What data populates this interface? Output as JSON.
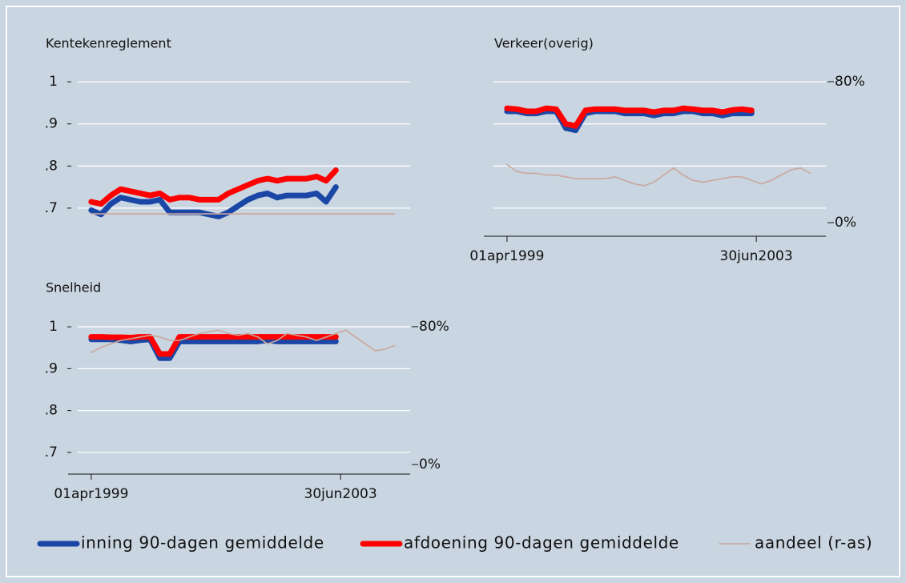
{
  "legend": {
    "position": "bottom",
    "entries": [
      {
        "name": "inning 90-dagen gemiddelde",
        "color": "#1a47a6"
      },
      {
        "name": "afdoening 90-dagen gemiddelde",
        "color": "#ff0000"
      },
      {
        "name": "aandeel (r-as)",
        "color": "#c9a79c"
      }
    ]
  },
  "chart_data": [
    {
      "type": "line",
      "title": "Kentekenreglement",
      "x": [
        "1999-04-01",
        "1999-06-01",
        "1999-08-01",
        "1999-10-01",
        "1999-12-01",
        "2000-02-01",
        "2000-04-01",
        "2000-06-01",
        "2000-08-01",
        "2000-10-01",
        "2000-12-01",
        "2001-02-01",
        "2001-04-01",
        "2001-06-01",
        "2001-08-01",
        "2001-10-01",
        "2001-12-01",
        "2002-02-01",
        "2002-04-01",
        "2002-06-01",
        "2002-08-01",
        "2002-10-01",
        "2002-12-01",
        "2003-02-01",
        "2003-04-01",
        "2003-06-01",
        "2003-08-01",
        "2003-10-01",
        "2003-12-01",
        "2004-02-01",
        "2004-04-01",
        "2004-06-01"
      ],
      "series": [
        {
          "values": [
            0.695,
            0.685,
            0.71,
            0.725,
            0.72,
            0.715,
            0.715,
            0.72,
            0.69,
            0.69,
            0.69,
            0.69,
            0.685,
            0.68,
            0.69,
            0.705,
            0.72,
            0.73,
            0.735,
            0.725,
            0.73,
            0.73,
            0.73,
            0.735,
            0.715,
            0.75,
            null,
            null,
            null,
            null,
            null,
            null
          ]
        },
        {
          "values": [
            0.715,
            0.71,
            0.73,
            0.745,
            0.74,
            0.735,
            0.73,
            0.735,
            0.72,
            0.725,
            0.725,
            0.72,
            0.72,
            0.72,
            0.735,
            0.745,
            0.755,
            0.765,
            0.77,
            0.765,
            0.77,
            0.77,
            0.77,
            0.775,
            0.765,
            0.79,
            null,
            null,
            null,
            null,
            null,
            null
          ]
        },
        {
          "axis": "y2",
          "values": [
            5,
            5,
            5,
            5,
            5,
            5,
            5,
            5,
            5,
            5,
            5,
            5,
            5,
            5,
            5,
            5,
            5,
            5,
            5,
            5,
            5,
            5,
            5,
            5,
            5,
            5,
            5,
            5,
            5,
            5,
            5,
            5
          ]
        }
      ],
      "xlim": [
        "1998-11-08",
        "2004-09-05"
      ],
      "ylim": [
        0.637,
        1.025
      ],
      "yticks": [
        1,
        {
          "value": 0.9,
          "label": ".9"
        },
        {
          "value": 0.8,
          "label": ".8"
        },
        {
          "value": 0.7,
          "label": ".7"
        }
      ],
      "ytick_labels": true,
      "y2lim": [
        -6.8,
        85.9
      ],
      "grid": true
    },
    {
      "type": "line",
      "title": "Verkeer(overig)",
      "x": [
        "1999-04-01",
        "1999-06-01",
        "1999-08-01",
        "1999-10-01",
        "1999-12-01",
        "2000-02-01",
        "2000-04-01",
        "2000-06-01",
        "2000-08-01",
        "2000-10-01",
        "2000-12-01",
        "2001-02-01",
        "2001-04-01",
        "2001-06-01",
        "2001-08-01",
        "2001-10-01",
        "2001-12-01",
        "2002-02-01",
        "2002-04-01",
        "2002-06-01",
        "2002-08-01",
        "2002-10-01",
        "2002-12-01",
        "2003-02-01",
        "2003-04-01",
        "2003-06-01",
        "2003-08-01",
        "2003-10-01",
        "2003-12-01",
        "2004-02-01",
        "2004-04-01",
        "2004-06-01"
      ],
      "series": [
        {
          "values": [
            0.93,
            0.93,
            0.925,
            0.925,
            0.93,
            0.93,
            0.89,
            0.885,
            0.925,
            0.93,
            0.93,
            0.93,
            0.925,
            0.925,
            0.925,
            0.92,
            0.925,
            0.925,
            0.93,
            0.93,
            0.925,
            0.925,
            0.92,
            0.925,
            0.925,
            0.925,
            null,
            null,
            null,
            null,
            null,
            null
          ]
        },
        {
          "values": [
            0.937,
            0.935,
            0.93,
            0.93,
            0.937,
            0.935,
            0.9,
            0.895,
            0.932,
            0.935,
            0.935,
            0.935,
            0.932,
            0.932,
            0.932,
            0.928,
            0.932,
            0.932,
            0.937,
            0.935,
            0.932,
            0.932,
            0.928,
            0.933,
            0.935,
            0.932,
            null,
            null,
            null,
            null,
            null,
            null
          ]
        },
        {
          "axis": "y2",
          "values": [
            33,
            29,
            28,
            28,
            27,
            27,
            26,
            25,
            25,
            25,
            25,
            26,
            24,
            22,
            21,
            23,
            27,
            31,
            27,
            24,
            23,
            24,
            25,
            26,
            26,
            24,
            22,
            24,
            27,
            30,
            31,
            28
          ]
        }
      ],
      "xlim": [
        "1998-11-08",
        "2004-09-05"
      ],
      "xticks": [
        {
          "value": "1999-04-01",
          "label": "01apr1999"
        },
        {
          "value": "2003-06-30",
          "label": "30jun2003"
        }
      ],
      "ylim": [
        0.637,
        1.025
      ],
      "yticks": [
        1,
        0.9,
        0.8,
        0.7
      ],
      "ytick_labels": false,
      "y2lim": [
        -6.8,
        85.9
      ],
      "y2ticks": [
        {
          "value": 80,
          "label": "80%"
        },
        {
          "value": 0,
          "label": "0%"
        }
      ],
      "grid": true
    },
    {
      "type": "line",
      "title": "Snelheid",
      "x": [
        "1999-04-01",
        "1999-06-01",
        "1999-08-01",
        "1999-10-01",
        "1999-12-01",
        "2000-02-01",
        "2000-04-01",
        "2000-06-01",
        "2000-08-01",
        "2000-10-01",
        "2000-12-01",
        "2001-02-01",
        "2001-04-01",
        "2001-06-01",
        "2001-08-01",
        "2001-10-01",
        "2001-12-01",
        "2002-02-01",
        "2002-04-01",
        "2002-06-01",
        "2002-08-01",
        "2002-10-01",
        "2002-12-01",
        "2003-02-01",
        "2003-04-01",
        "2003-06-01",
        "2003-08-01",
        "2003-10-01",
        "2003-12-01",
        "2004-02-01",
        "2004-04-01",
        "2004-06-01"
      ],
      "series": [
        {
          "values": [
            0.97,
            0.97,
            0.97,
            0.968,
            0.965,
            0.968,
            0.97,
            0.925,
            0.925,
            0.965,
            0.965,
            0.965,
            0.965,
            0.965,
            0.965,
            0.965,
            0.965,
            0.965,
            0.968,
            0.965,
            0.965,
            0.965,
            0.965,
            0.965,
            0.965,
            0.965,
            null,
            null,
            null,
            null,
            null,
            null
          ]
        },
        {
          "values": [
            0.976,
            0.976,
            0.975,
            0.975,
            0.974,
            0.976,
            0.976,
            0.935,
            0.935,
            0.976,
            0.976,
            0.976,
            0.976,
            0.976,
            0.976,
            0.976,
            0.976,
            0.976,
            0.976,
            0.976,
            0.976,
            0.976,
            0.976,
            0.976,
            0.976,
            0.976,
            null,
            null,
            null,
            null,
            null,
            null
          ]
        },
        {
          "axis": "y2",
          "values": [
            65,
            68,
            70,
            72,
            73,
            74,
            75,
            74,
            72,
            72,
            74,
            76,
            77,
            78,
            76,
            75,
            76,
            74,
            70,
            72,
            76,
            75,
            74,
            72,
            74,
            76,
            78,
            74,
            70,
            66,
            67,
            69
          ]
        }
      ],
      "xlim": [
        "1998-11-08",
        "2004-09-05"
      ],
      "xticks": [
        {
          "value": "1999-04-01",
          "label": "01apr1999"
        },
        {
          "value": "2003-06-30",
          "label": "30jun2003"
        }
      ],
      "ylim": [
        0.652,
        1.025
      ],
      "yticks": [
        1,
        {
          "value": 0.9,
          "label": ".9"
        },
        {
          "value": 0.8,
          "label": ".8"
        },
        {
          "value": 0.7,
          "label": ".7"
        }
      ],
      "ytick_labels": true,
      "y2lim": [
        -4.6,
        86
      ],
      "y2ticks": [
        {
          "value": 80,
          "label": "80%"
        },
        {
          "value": 0,
          "label": "0%"
        }
      ],
      "grid": true
    }
  ]
}
